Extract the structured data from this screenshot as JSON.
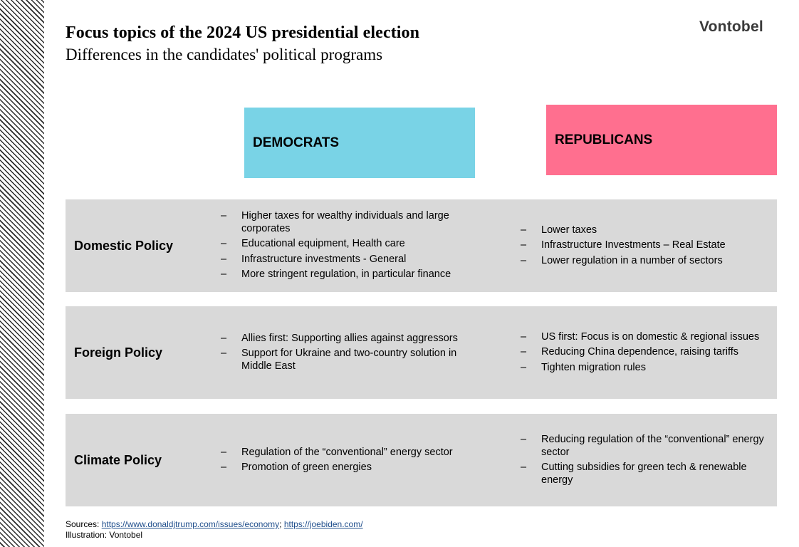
{
  "header": {
    "title": "Focus topics of the 2024 US presidential election",
    "subtitle": "Differences in the candidates' political programs",
    "logo": "Vontobel"
  },
  "columns": {
    "democrats": {
      "label": "DEMOCRATS",
      "color": "#79d3e6"
    },
    "republicans": {
      "label": "REPUBLICANS",
      "color": "#ff6f8f"
    }
  },
  "dash": "–",
  "rows": [
    {
      "label": "Domestic Policy",
      "democrats": [
        "Higher taxes for wealthy individuals and large corporates",
        "Educational equipment, Health care",
        "Infrastructure investments - General",
        "More stringent regulation, in particular finance"
      ],
      "republicans": [
        "Lower taxes",
        "Infrastructure Investments – Real Estate",
        "Lower regulation in a number of sectors"
      ]
    },
    {
      "label": "Foreign Policy",
      "democrats": [
        "Allies first: Supporting allies against aggressors",
        "Support for Ukraine and two-country solution in Middle East"
      ],
      "republicans": [
        "US first: Focus is on domestic & regional issues",
        "Reducing China dependence, raising tariffs",
        "Tighten migration rules"
      ]
    },
    {
      "label": "Climate Policy",
      "democrats": [
        "Regulation of the “conventional” energy sector",
        "Promotion of green energies"
      ],
      "republicans": [
        "Reducing regulation of the “conventional” energy sector",
        "Cutting subsidies for green tech & renewable energy"
      ]
    }
  ],
  "footer": {
    "sources_prefix": "Sources: ",
    "link1": "https://www.donaldjtrump.com/issues/economy",
    "separator": "; ",
    "link2": "https://joebiden.com/",
    "illustration": "Illustration: Vontobel"
  }
}
